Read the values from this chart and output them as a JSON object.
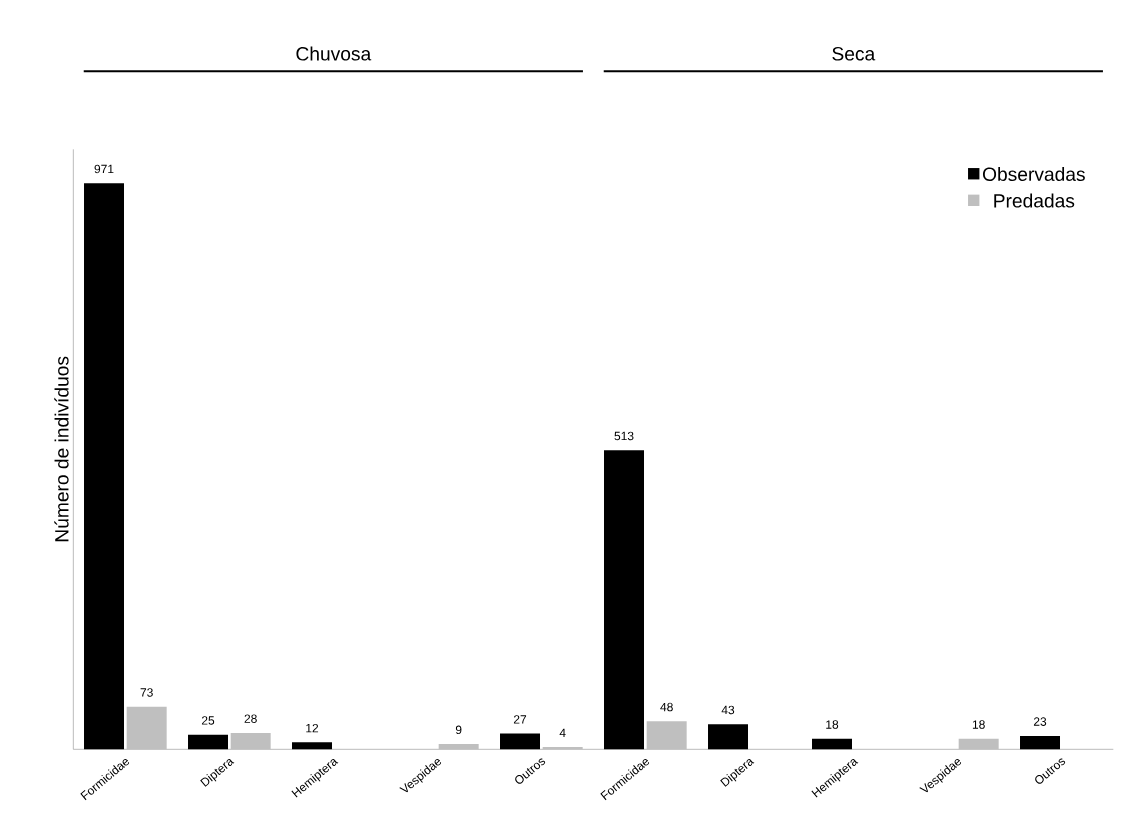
{
  "chart_data": {
    "type": "bar",
    "ylabel": "Número de indivíduos",
    "categories": [
      "Formicidae",
      "Diptera",
      "Hemiptera",
      "Vespidae",
      "Outros",
      "Formicidae",
      "Diptera",
      "Hemiptera",
      "Vespidae",
      "Outros"
    ],
    "series": [
      {
        "name": "Observadas",
        "color": "#000000",
        "values": [
          971,
          25,
          12,
          null,
          27,
          513,
          43,
          18,
          null,
          23
        ]
      },
      {
        "name": "Predadas",
        "color": "#bfbfbf",
        "values": [
          73,
          28,
          null,
          9,
          4,
          48,
          null,
          null,
          18,
          null
        ]
      }
    ],
    "annotations": [
      "Chuvosa",
      "Seca"
    ],
    "data_labels": true,
    "legend": "top right",
    "tick_labels": "x",
    "grid": false
  }
}
